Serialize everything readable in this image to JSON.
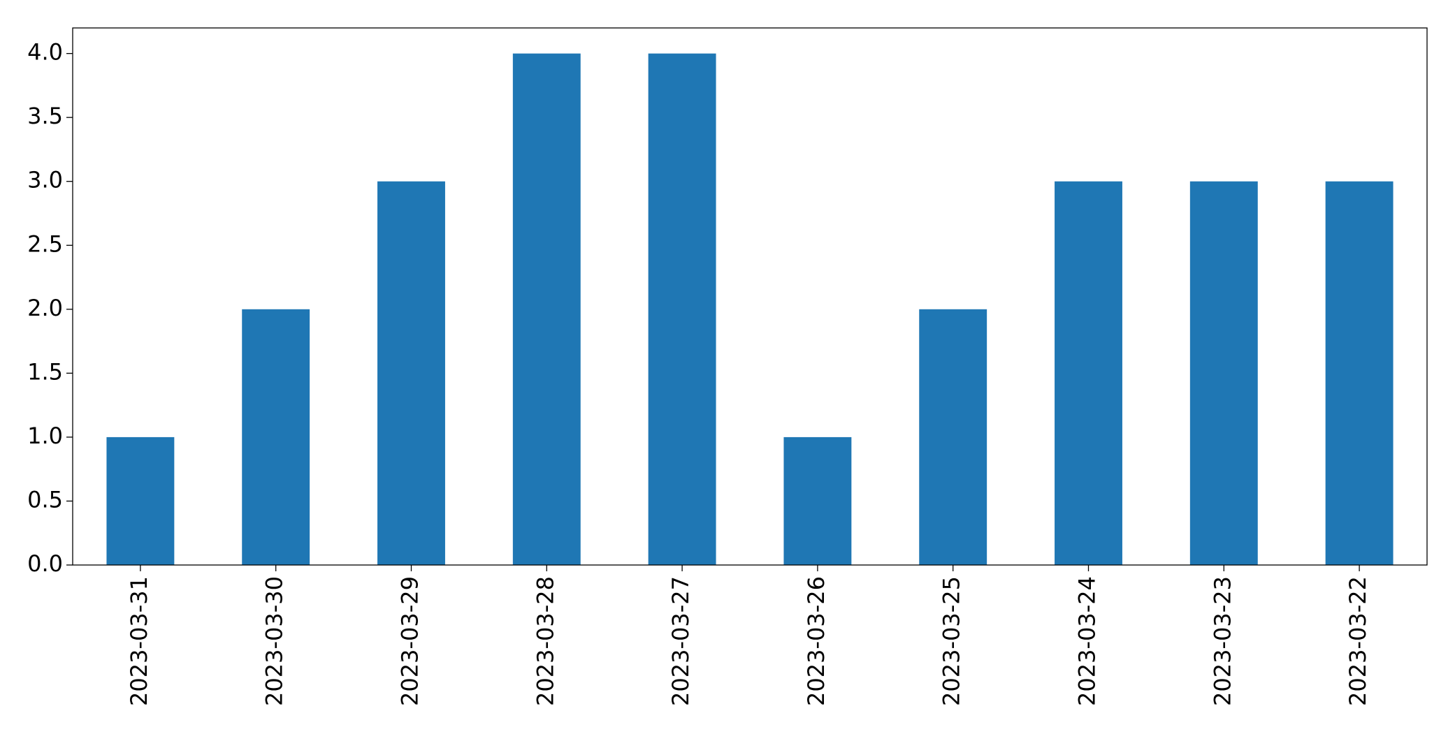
{
  "chart_data": {
    "type": "bar",
    "categories": [
      "2023-03-31",
      "2023-03-30",
      "2023-03-29",
      "2023-03-28",
      "2023-03-27",
      "2023-03-26",
      "2023-03-25",
      "2023-03-24",
      "2023-03-23",
      "2023-03-22"
    ],
    "values": [
      1,
      2,
      3,
      4,
      4,
      1,
      2,
      3,
      3,
      3
    ],
    "color": "#1f77b4",
    "ylim": [
      0,
      4.2
    ],
    "yticks": [
      {
        "value": 0,
        "label": "0.0"
      },
      {
        "value": 0.5,
        "label": "0.5"
      },
      {
        "value": 1,
        "label": "1.0"
      },
      {
        "value": 1.5,
        "label": "1.5"
      },
      {
        "value": 2,
        "label": "2.0"
      },
      {
        "value": 2.5,
        "label": "2.5"
      },
      {
        "value": 3,
        "label": "3.0"
      },
      {
        "value": 3.5,
        "label": "3.5"
      },
      {
        "value": 4,
        "label": "4.0"
      }
    ],
    "grid": false
  }
}
